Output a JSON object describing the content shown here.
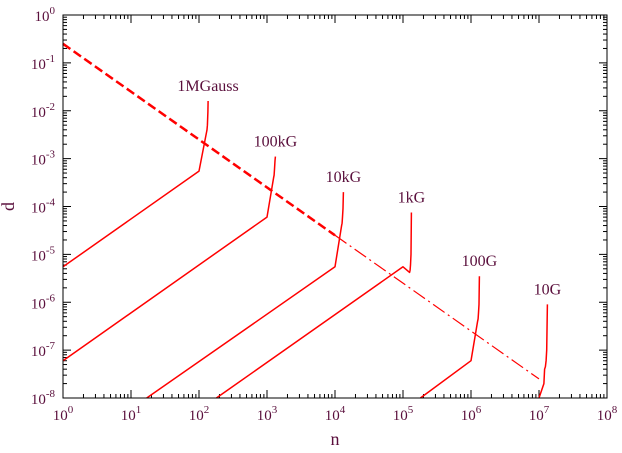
{
  "chart_data": {
    "type": "line",
    "title": "",
    "xlabel": "n",
    "ylabel": "d",
    "xscale": "log",
    "yscale": "log",
    "xlim": [
      1,
      100000000
    ],
    "ylim": [
      1e-08,
      1
    ],
    "grid": false,
    "legend": "none",
    "x_tick_labels": [
      "10^0",
      "10^1",
      "10^2",
      "10^3",
      "10^4",
      "10^5",
      "10^6",
      "10^7",
      "10^8"
    ],
    "y_tick_labels": [
      "10^-8",
      "10^-7",
      "10^-6",
      "10^-5",
      "10^-4",
      "10^-3",
      "10^-2",
      "10^-1",
      "10^0"
    ],
    "colors": {
      "series": "#ff0000",
      "text": "#5a0f3c",
      "axis": "#000000"
    },
    "series": [
      {
        "label": "1MGauss",
        "x": [
          1,
          100,
          130,
          131,
          133,
          135,
          136
        ],
        "y": [
          5.5e-06,
          0.00055,
          0.0037,
          0.004,
          0.005,
          0.0095,
          0.016
        ]
      },
      {
        "label": "100kG",
        "x": [
          1,
          1000,
          1250,
          1270,
          1290,
          1310,
          1330
        ],
        "y": [
          6e-08,
          6e-05,
          0.0004,
          0.00045,
          0.0006,
          0.0009,
          0.0011
        ]
      },
      {
        "label": "10kG",
        "x": [
          17,
          10000,
          12500,
          12700,
          12900,
          13100,
          13300
        ],
        "y": [
          1e-08,
          5.5e-06,
          4e-05,
          4.5e-05,
          6e-05,
          9e-05,
          0.0002
        ]
      },
      {
        "label": "1kG",
        "x": [
          180,
          100000,
          125000,
          127000,
          129000,
          131000,
          133000
        ],
        "y": [
          1e-08,
          5.5e-06,
          4.2e-06,
          4.7e-06,
          6e-06,
          1e-05,
          7.5e-05
        ]
      },
      {
        "label": "100G",
        "x": [
          180000,
          1000000,
          1250000,
          1270000,
          1290000,
          1310000,
          1330000
        ],
        "y": [
          1e-08,
          6e-08,
          4e-07,
          4.5e-07,
          6e-07,
          9e-07,
          3.5e-06
        ]
      },
      {
        "label": "10G",
        "x": [
          10000000,
          11800000,
          12100000,
          12400000,
          12700000,
          13000000,
          13300000
        ],
        "y": [
          1e-08,
          2e-08,
          4e-08,
          4.5e-08,
          6e-08,
          1e-07,
          9e-07
        ]
      }
    ],
    "dashed_series": [
      {
        "style": "thick-dashed",
        "x": [
          1,
          10000
        ],
        "y": [
          0.25,
          2.5e-05
        ]
      },
      {
        "style": "thin-dashed",
        "x": [
          10000,
          10000000
        ],
        "y": [
          2.5e-05,
          2.5e-08
        ]
      }
    ]
  }
}
